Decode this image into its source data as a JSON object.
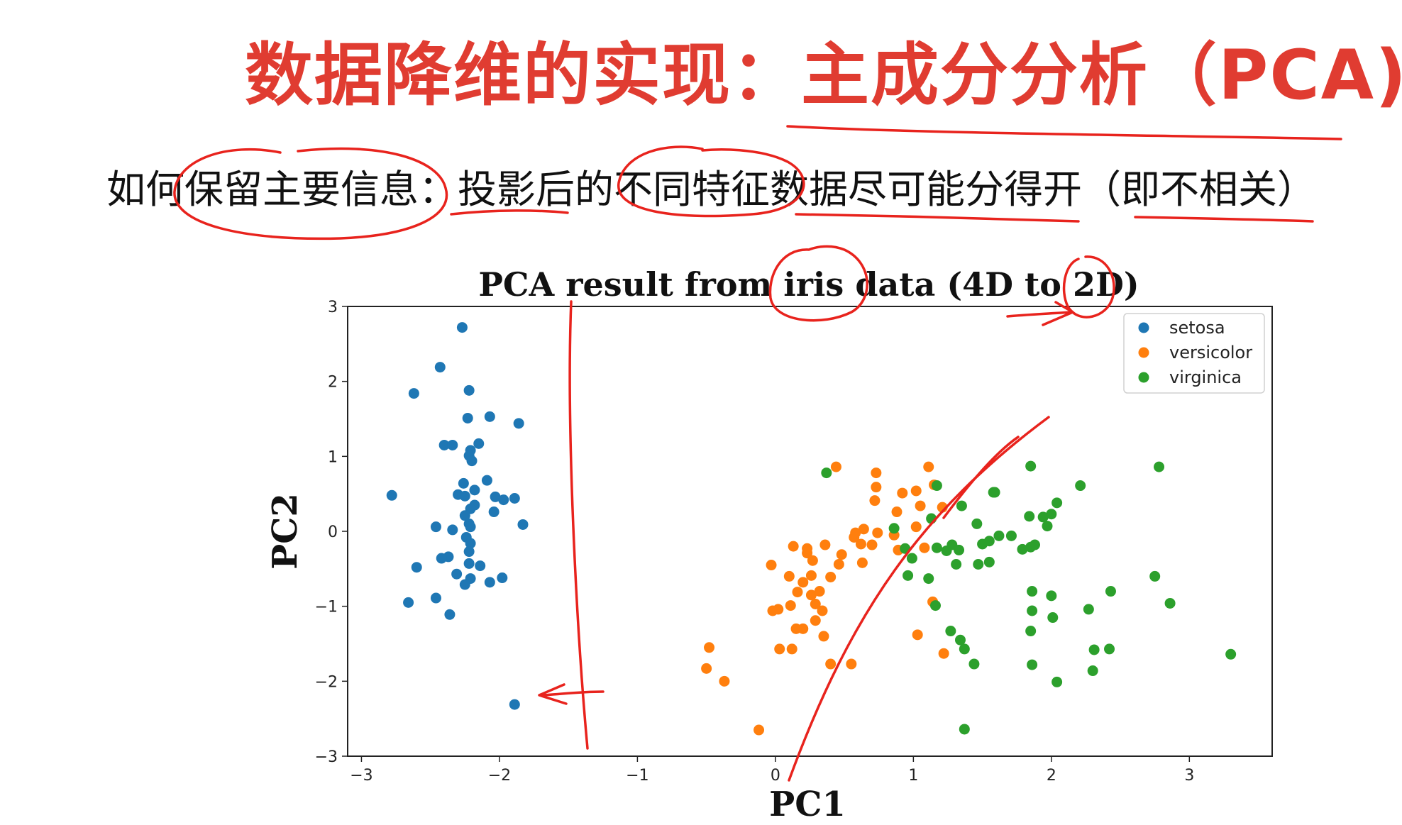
{
  "slide": {
    "title": "数据降维的实现：主成分分析（PCA)",
    "subtitle": "如何保留主要信息：投影后的不同特征数据尽可能分得开（即不相关）",
    "title_color": "#e03c31",
    "annotation_color": "#e8231d"
  },
  "chart_data": {
    "type": "scatter",
    "title": "PCA result from iris data (4D to 2D)",
    "xlabel": "PC1",
    "ylabel": "PC2",
    "xlim": [
      -3.1,
      3.6
    ],
    "ylim": [
      -3,
      3
    ],
    "xticks": [
      -3,
      -2,
      -1,
      0,
      1,
      2,
      3
    ],
    "yticks": [
      -3,
      -2,
      -1,
      0,
      1,
      2,
      3
    ],
    "xtick_labels": [
      "−3",
      "−2",
      "−1",
      "0",
      "1",
      "2",
      "3"
    ],
    "ytick_labels": [
      "−3",
      "−2",
      "−1",
      "0",
      "1",
      "2",
      "3"
    ],
    "grid": false,
    "legend_position": "top-right",
    "series": [
      {
        "name": "setosa",
        "color": "#1f77b4",
        "points": [
          [
            -2.27,
            2.72
          ],
          [
            -2.43,
            2.19
          ],
          [
            -2.62,
            1.84
          ],
          [
            -2.22,
            1.88
          ],
          [
            -2.23,
            1.51
          ],
          [
            -2.07,
            1.53
          ],
          [
            -1.86,
            1.44
          ],
          [
            -2.4,
            1.15
          ],
          [
            -2.34,
            1.15
          ],
          [
            -2.15,
            1.17
          ],
          [
            -2.21,
            1.08
          ],
          [
            -2.22,
            1.01
          ],
          [
            -2.2,
            0.94
          ],
          [
            -2.78,
            0.48
          ],
          [
            -2.09,
            0.68
          ],
          [
            -2.26,
            0.64
          ],
          [
            -2.18,
            0.55
          ],
          [
            -2.3,
            0.49
          ],
          [
            -2.25,
            0.47
          ],
          [
            -2.03,
            0.46
          ],
          [
            -1.97,
            0.42
          ],
          [
            -1.89,
            0.44
          ],
          [
            -2.18,
            0.35
          ],
          [
            -2.21,
            0.3
          ],
          [
            -2.04,
            0.26
          ],
          [
            -2.25,
            0.21
          ],
          [
            -2.22,
            0.1
          ],
          [
            -1.83,
            0.09
          ],
          [
            -2.46,
            0.06
          ],
          [
            -2.21,
            0.06
          ],
          [
            -2.34,
            0.02
          ],
          [
            -2.24,
            -0.08
          ],
          [
            -2.21,
            -0.16
          ],
          [
            -2.22,
            -0.27
          ],
          [
            -2.37,
            -0.34
          ],
          [
            -2.42,
            -0.36
          ],
          [
            -2.6,
            -0.48
          ],
          [
            -2.22,
            -0.43
          ],
          [
            -2.14,
            -0.46
          ],
          [
            -2.31,
            -0.57
          ],
          [
            -2.21,
            -0.63
          ],
          [
            -2.07,
            -0.68
          ],
          [
            -1.98,
            -0.62
          ],
          [
            -2.25,
            -0.71
          ],
          [
            -2.66,
            -0.95
          ],
          [
            -2.46,
            -0.89
          ],
          [
            -2.36,
            -1.11
          ],
          [
            -1.89,
            -2.31
          ]
        ]
      },
      {
        "name": "versicolor",
        "color": "#ff7f0e",
        "points": [
          [
            0.44,
            0.86
          ],
          [
            1.11,
            0.86
          ],
          [
            0.73,
            0.78
          ],
          [
            1.02,
            0.54
          ],
          [
            0.92,
            0.51
          ],
          [
            1.15,
            0.62
          ],
          [
            0.73,
            0.59
          ],
          [
            0.72,
            0.41
          ],
          [
            0.88,
            0.26
          ],
          [
            1.05,
            0.34
          ],
          [
            1.21,
            0.32
          ],
          [
            1.02,
            0.06
          ],
          [
            0.64,
            0.03
          ],
          [
            0.58,
            -0.02
          ],
          [
            0.74,
            -0.02
          ],
          [
            0.86,
            -0.05
          ],
          [
            0.57,
            -0.08
          ],
          [
            0.7,
            -0.18
          ],
          [
            0.62,
            -0.17
          ],
          [
            0.36,
            -0.18
          ],
          [
            0.23,
            -0.23
          ],
          [
            0.13,
            -0.2
          ],
          [
            0.23,
            -0.29
          ],
          [
            0.27,
            -0.39
          ],
          [
            0.48,
            -0.31
          ],
          [
            0.89,
            -0.25
          ],
          [
            1.08,
            -0.22
          ],
          [
            0.46,
            -0.44
          ],
          [
            0.63,
            -0.42
          ],
          [
            -0.03,
            -0.45
          ],
          [
            0.1,
            -0.6
          ],
          [
            0.26,
            -0.59
          ],
          [
            0.4,
            -0.61
          ],
          [
            0.2,
            -0.68
          ],
          [
            0.16,
            -0.81
          ],
          [
            0.26,
            -0.85
          ],
          [
            0.32,
            -0.8
          ],
          [
            0.29,
            -0.97
          ],
          [
            0.11,
            -0.99
          ],
          [
            -0.02,
            -1.06
          ],
          [
            0.02,
            -1.04
          ],
          [
            0.34,
            -1.06
          ],
          [
            0.29,
            -1.19
          ],
          [
            0.2,
            -1.3
          ],
          [
            0.15,
            -1.3
          ],
          [
            0.35,
            -1.4
          ],
          [
            1.14,
            -0.94
          ],
          [
            1.03,
            -1.38
          ],
          [
            1.22,
            -1.63
          ],
          [
            0.03,
            -1.57
          ],
          [
            0.12,
            -1.57
          ],
          [
            -0.48,
            -1.55
          ],
          [
            0.4,
            -1.77
          ],
          [
            0.55,
            -1.77
          ],
          [
            -0.5,
            -1.83
          ],
          [
            -0.37,
            -2.0
          ],
          [
            -0.12,
            -2.65
          ]
        ]
      },
      {
        "name": "virginica",
        "color": "#2ca02c",
        "points": [
          [
            0.37,
            0.78
          ],
          [
            1.85,
            0.87
          ],
          [
            2.78,
            0.86
          ],
          [
            2.21,
            0.61
          ],
          [
            1.17,
            0.61
          ],
          [
            1.59,
            0.52
          ],
          [
            1.58,
            0.52
          ],
          [
            2.04,
            0.38
          ],
          [
            1.35,
            0.34
          ],
          [
            1.94,
            0.19
          ],
          [
            2.0,
            0.23
          ],
          [
            1.84,
            0.2
          ],
          [
            1.13,
            0.17
          ],
          [
            1.97,
            0.07
          ],
          [
            0.86,
            0.04
          ],
          [
            1.46,
            0.1
          ],
          [
            1.62,
            -0.06
          ],
          [
            1.71,
            -0.06
          ],
          [
            1.55,
            -0.13
          ],
          [
            1.5,
            -0.17
          ],
          [
            1.28,
            -0.18
          ],
          [
            1.17,
            -0.22
          ],
          [
            1.33,
            -0.25
          ],
          [
            1.85,
            -0.21
          ],
          [
            1.88,
            -0.18
          ],
          [
            1.79,
            -0.24
          ],
          [
            0.94,
            -0.23
          ],
          [
            1.24,
            -0.26
          ],
          [
            0.99,
            -0.36
          ],
          [
            1.31,
            -0.44
          ],
          [
            1.47,
            -0.44
          ],
          [
            1.55,
            -0.41
          ],
          [
            0.96,
            -0.59
          ],
          [
            1.11,
            -0.63
          ],
          [
            2.75,
            -0.6
          ],
          [
            1.86,
            -0.8
          ],
          [
            2.0,
            -0.86
          ],
          [
            2.43,
            -0.8
          ],
          [
            2.86,
            -0.96
          ],
          [
            1.16,
            -0.99
          ],
          [
            2.27,
            -1.04
          ],
          [
            1.86,
            -1.06
          ],
          [
            2.01,
            -1.15
          ],
          [
            1.85,
            -1.33
          ],
          [
            1.27,
            -1.33
          ],
          [
            1.34,
            -1.45
          ],
          [
            1.37,
            -1.57
          ],
          [
            2.31,
            -1.58
          ],
          [
            2.42,
            -1.57
          ],
          [
            3.3,
            -1.64
          ],
          [
            1.44,
            -1.77
          ],
          [
            1.86,
            -1.78
          ],
          [
            2.3,
            -1.86
          ],
          [
            2.04,
            -2.01
          ],
          [
            1.37,
            -2.64
          ]
        ]
      }
    ]
  }
}
